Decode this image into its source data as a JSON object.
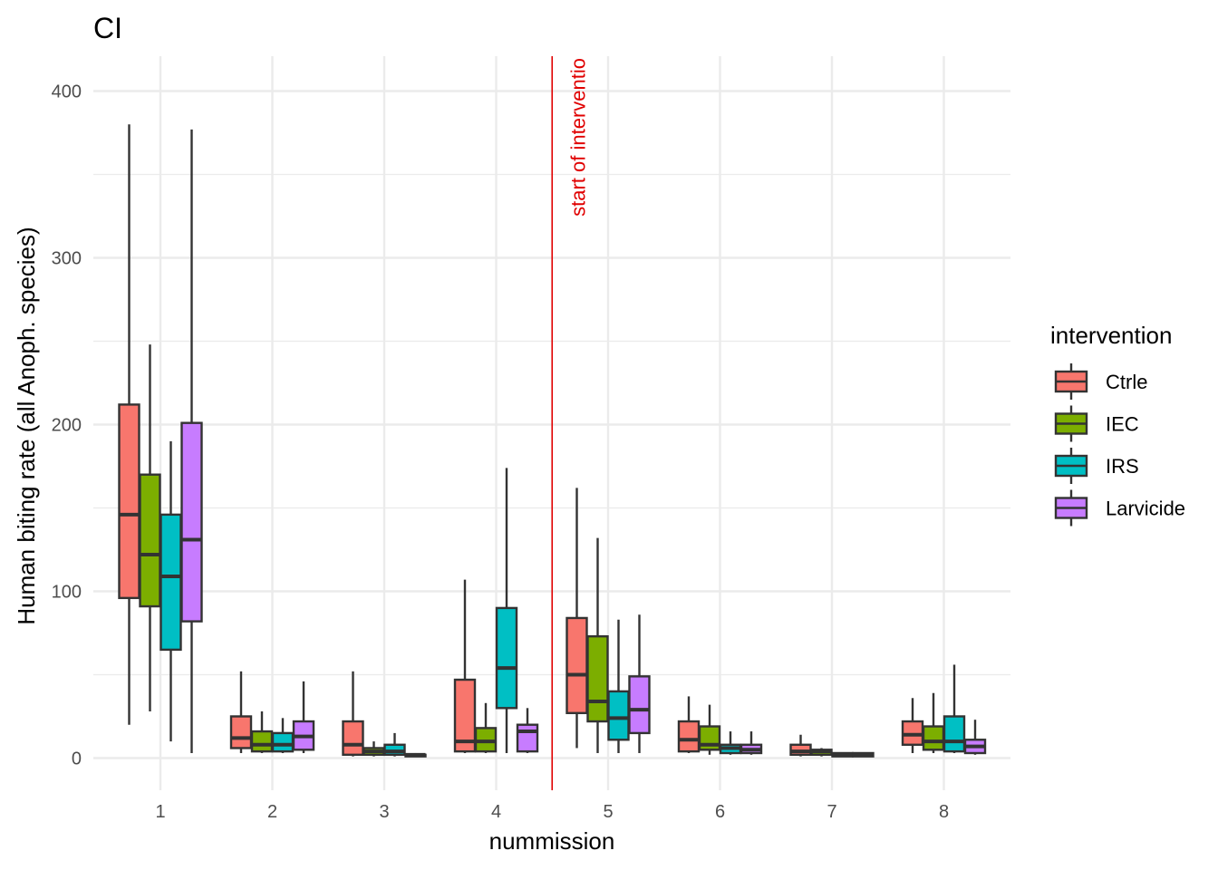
{
  "chart_data": {
    "type": "boxplot",
    "title": "CI",
    "xlabel": "nummission",
    "ylabel": "Human biting rate (all Anoph. species)",
    "categories": [
      "1",
      "2",
      "3",
      "4",
      "5",
      "6",
      "7",
      "8"
    ],
    "y_ticks": [
      "0",
      "100",
      "200",
      "300",
      "400"
    ],
    "ylim": [
      -20,
      420
    ],
    "grid": true,
    "legend_title": "intervention",
    "legend_position": "right",
    "series": [
      {
        "name": "Ctrle",
        "color": "#F8766D",
        "boxes": [
          {
            "min": 20,
            "q1": 96,
            "median": 146,
            "q3": 212,
            "max": 380
          },
          {
            "min": 3,
            "q1": 6,
            "median": 12,
            "q3": 25,
            "max": 52
          },
          {
            "min": 1,
            "q1": 2,
            "median": 8,
            "q3": 22,
            "max": 52
          },
          {
            "min": 3,
            "q1": 4,
            "median": 10,
            "q3": 47,
            "max": 107
          },
          {
            "min": 6,
            "q1": 27,
            "median": 50,
            "q3": 84,
            "max": 162
          },
          {
            "min": 3,
            "q1": 4,
            "median": 11,
            "q3": 22,
            "max": 37
          },
          {
            "min": 1,
            "q1": 2,
            "median": 4,
            "q3": 8,
            "max": 14
          },
          {
            "min": 3,
            "q1": 8,
            "median": 14,
            "q3": 22,
            "max": 36
          }
        ]
      },
      {
        "name": "IEC",
        "color": "#7CAE00",
        "boxes": [
          {
            "min": 28,
            "q1": 91,
            "median": 122,
            "q3": 170,
            "max": 248
          },
          {
            "min": 3,
            "q1": 4,
            "median": 8,
            "q3": 16,
            "max": 28
          },
          {
            "min": 1,
            "q1": 2,
            "median": 4,
            "q3": 6,
            "max": 10
          },
          {
            "min": 3,
            "q1": 4,
            "median": 10,
            "q3": 18,
            "max": 33
          },
          {
            "min": 3,
            "q1": 22,
            "median": 34,
            "q3": 73,
            "max": 132
          },
          {
            "min": 2,
            "q1": 5,
            "median": 8,
            "q3": 19,
            "max": 32
          },
          {
            "min": 1,
            "q1": 2,
            "median": 4,
            "q3": 5,
            "max": 6
          },
          {
            "min": 3,
            "q1": 5,
            "median": 10,
            "q3": 19,
            "max": 39
          }
        ]
      },
      {
        "name": "IRS",
        "color": "#00BFC4",
        "boxes": [
          {
            "min": 10,
            "q1": 65,
            "median": 109,
            "q3": 146,
            "max": 190
          },
          {
            "min": 3,
            "q1": 4,
            "median": 8,
            "q3": 15,
            "max": 24
          },
          {
            "min": 1,
            "q1": 2,
            "median": 4,
            "q3": 8,
            "max": 15
          },
          {
            "min": 3,
            "q1": 30,
            "median": 54,
            "q3": 90,
            "max": 174
          },
          {
            "min": 3,
            "q1": 11,
            "median": 24,
            "q3": 40,
            "max": 83
          },
          {
            "min": 2,
            "q1": 3,
            "median": 6,
            "q3": 8,
            "max": 16
          },
          {
            "min": 1,
            "q1": 1,
            "median": 2,
            "q3": 3,
            "max": 3
          },
          {
            "min": 3,
            "q1": 4,
            "median": 10,
            "q3": 25,
            "max": 56
          }
        ]
      },
      {
        "name": "Larvicide",
        "color": "#C77CFF",
        "boxes": [
          {
            "min": 3,
            "q1": 82,
            "median": 131,
            "q3": 201,
            "max": 377
          },
          {
            "min": 3,
            "q1": 5,
            "median": 13,
            "q3": 22,
            "max": 46
          },
          {
            "min": 1,
            "q1": 1,
            "median": 2,
            "q3": 2,
            "max": 3
          },
          {
            "min": 3,
            "q1": 4,
            "median": 16,
            "q3": 20,
            "max": 30
          },
          {
            "min": 3,
            "q1": 15,
            "median": 29,
            "q3": 49,
            "max": 86
          },
          {
            "min": 2,
            "q1": 3,
            "median": 5,
            "q3": 8,
            "max": 16
          },
          {
            "min": 1,
            "q1": 1,
            "median": 2,
            "q3": 3,
            "max": 3
          },
          {
            "min": 2,
            "q1": 3,
            "median": 7,
            "q3": 11,
            "max": 23
          }
        ]
      }
    ],
    "annotations": [
      {
        "type": "vline",
        "x": 4.5,
        "label": "start of interventio",
        "color": "#E00000"
      }
    ]
  }
}
